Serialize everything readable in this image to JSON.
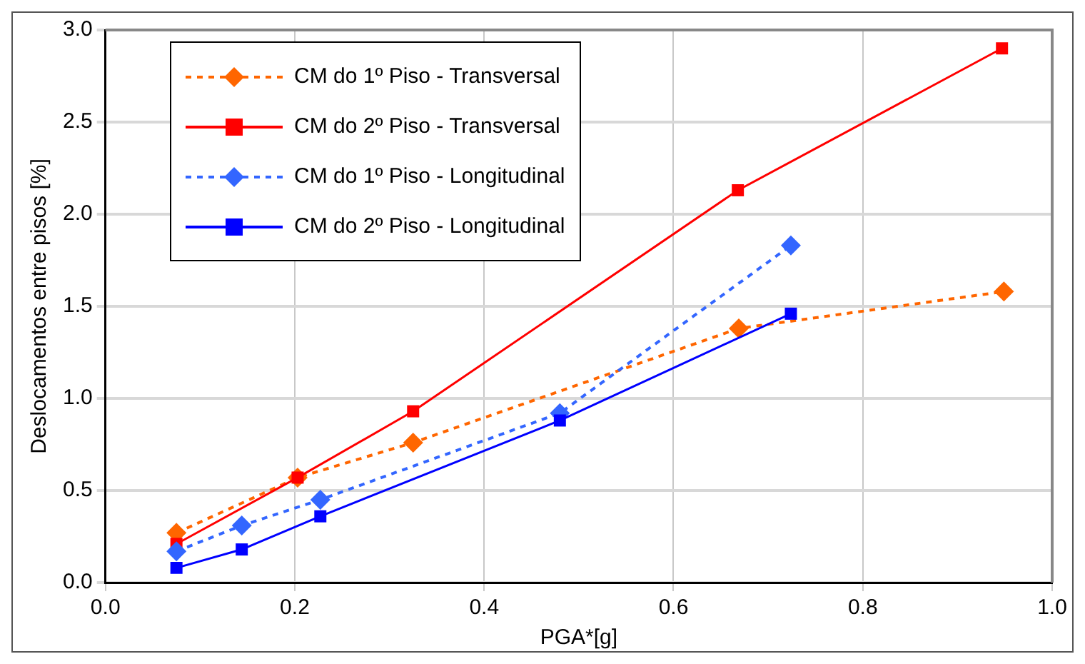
{
  "chart_data": {
    "type": "line",
    "xlabel": "PGA*[g]",
    "ylabel": "Deslocamentos entre pisos [%]",
    "xlim": [
      0,
      1
    ],
    "xticks": [
      {
        "value": 0,
        "label": "0.0"
      },
      {
        "value": 0.2,
        "label": "0.2"
      },
      {
        "value": 0.4,
        "label": "0.4"
      },
      {
        "value": 0.6,
        "label": "0.6"
      },
      {
        "value": 0.8,
        "label": "0.8"
      },
      {
        "value": 1,
        "label": "1.0"
      }
    ],
    "ylim": [
      0,
      3
    ],
    "yticks": [
      {
        "value": 0,
        "label": "0.0"
      },
      {
        "value": 0.5,
        "label": "0.5"
      },
      {
        "value": 1,
        "label": "1.0"
      },
      {
        "value": 1.5,
        "label": "1.5"
      },
      {
        "value": 2,
        "label": "2.0"
      },
      {
        "value": 2.5,
        "label": "2.5"
      },
      {
        "value": 3,
        "label": "3.0"
      }
    ],
    "grid": true,
    "legend": "top left",
    "series": [
      {
        "name": "CM do 1º Piso - Transversal",
        "color": "#ff6600",
        "marker": "diamond",
        "line_style": "dashed",
        "x": [
          0.075,
          0.203,
          0.325,
          0.669,
          0.949
        ],
        "values": [
          0.27,
          0.57,
          0.76,
          1.38,
          1.58
        ]
      },
      {
        "name": "CM do 2º Piso - Transversal",
        "color": "#ff0000",
        "marker": "square",
        "line_style": "solid",
        "x": [
          0.075,
          0.203,
          0.325,
          0.668,
          0.947
        ],
        "values": [
          0.21,
          0.57,
          0.93,
          2.13,
          2.9
        ]
      },
      {
        "name": "CM do 1º Piso - Longitudinal",
        "color": "#3366ff",
        "marker": "diamond",
        "line_style": "dashed",
        "x": [
          0.075,
          0.144,
          0.227,
          0.48,
          0.724
        ],
        "values": [
          0.17,
          0.31,
          0.45,
          0.92,
          1.83
        ]
      },
      {
        "name": "CM do 2º Piso - Longitudinal",
        "color": "#0000ff",
        "marker": "square",
        "line_style": "solid",
        "x": [
          0.075,
          0.144,
          0.227,
          0.48,
          0.724
        ],
        "values": [
          0.08,
          0.18,
          0.36,
          0.88,
          1.46
        ]
      }
    ]
  }
}
